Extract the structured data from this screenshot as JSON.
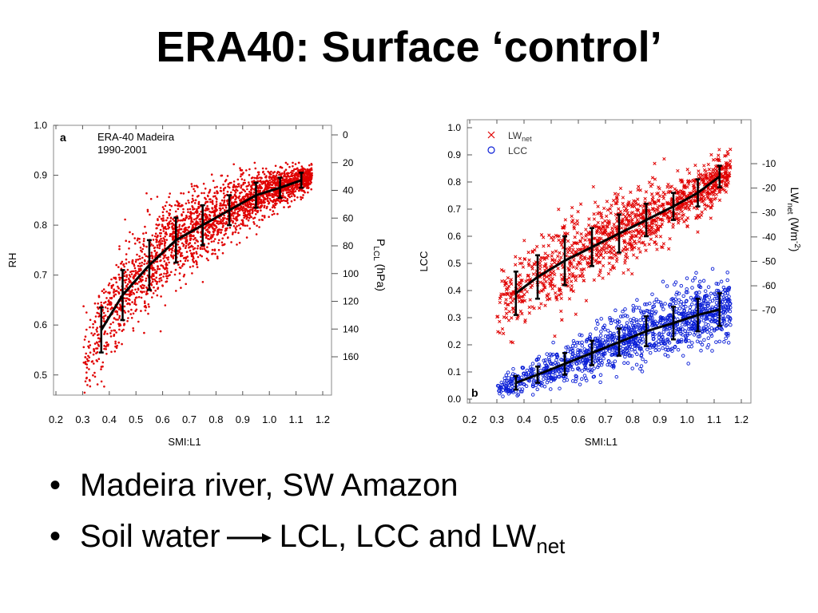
{
  "slide": {
    "title": "ERA40:  Surface ‘control’",
    "bullets": [
      {
        "text": "Madeira river, SW Amazon"
      },
      {
        "text_before_arrow": "Soil water",
        "text_after_arrow": "LCL, LCC and LW",
        "subscript": "net"
      }
    ]
  },
  "chart_data": [
    {
      "type": "scatter",
      "panel_letter": "a",
      "annotation_lines": [
        "ERA-40 Madeira",
        "1990-2001"
      ],
      "xlabel": "SMI:L1",
      "ylabel": "RH",
      "y2label": {
        "base": "P",
        "sub": "LCL",
        "rest": " (hPa)"
      },
      "xlim": [
        0.2,
        1.2
      ],
      "ylim": [
        0.45,
        1.0
      ],
      "xticks": [
        "0.2",
        "0.3",
        "0.4",
        "0.5",
        "0.6",
        "0.7",
        "0.8",
        "0.9",
        "1.0",
        "1.1",
        "1.2"
      ],
      "yticks": [
        "0.5",
        "0.6",
        "0.7",
        "0.8",
        "0.9",
        "1.0"
      ],
      "y2ticks": [
        "0",
        "20",
        "40",
        "60",
        "80",
        "100",
        "120",
        "140",
        "160"
      ],
      "y2_relation": "RH = 1 - P_LCL/360",
      "series": [
        {
          "color": "#e00000",
          "marker": "dot",
          "binned_mean": {
            "x": [
              0.37,
              0.45,
              0.55,
              0.65,
              0.75,
              0.85,
              0.95,
              1.04,
              1.12
            ],
            "y": [
              0.59,
              0.66,
              0.72,
              0.77,
              0.8,
              0.83,
              0.86,
              0.875,
              0.89
            ],
            "sd": [
              0.045,
              0.05,
              0.05,
              0.045,
              0.04,
              0.03,
              0.025,
              0.02,
              0.015
            ]
          }
        }
      ]
    },
    {
      "type": "scatter",
      "panel_letter": "b",
      "xlabel": "SMI:L1",
      "ylabel": "LCC",
      "y2label": {
        "base": "LW",
        "sub": "net",
        "rest": " (Wm",
        "sup": "-2",
        "end": ")"
      },
      "xlim": [
        0.2,
        1.2
      ],
      "ylim": [
        0.0,
        1.0
      ],
      "xticks": [
        "0.2",
        "0.3",
        "0.4",
        "0.5",
        "0.6",
        "0.7",
        "0.8",
        "0.9",
        "1.0",
        "1.1",
        "1.2"
      ],
      "yticks": [
        "0.0",
        "0.1",
        "0.2",
        "0.3",
        "0.4",
        "0.5",
        "0.6",
        "0.7",
        "0.8",
        "0.9",
        "1.0"
      ],
      "y2ticks": [
        "-10",
        "-20",
        "-30",
        "-40",
        "-50",
        "-60",
        "-70"
      ],
      "y2_relation": "LCC = 0.9575 - 0.009 * |LWnet|",
      "legend_position": "top-left",
      "series": [
        {
          "name": "LW",
          "name_sub": "net",
          "color": "#e00000",
          "marker": "x",
          "binned_mean": {
            "x": [
              0.37,
              0.45,
              0.55,
              0.65,
              0.75,
              0.85,
              0.95,
              1.04,
              1.12
            ],
            "y": [
              0.39,
              0.45,
              0.51,
              0.56,
              0.61,
              0.66,
              0.71,
              0.76,
              0.82
            ],
            "sd": [
              0.08,
              0.08,
              0.09,
              0.07,
              0.07,
              0.06,
              0.05,
              0.05,
              0.04
            ]
          }
        },
        {
          "name": "LCC",
          "color": "#0a1ed6",
          "marker": "circle",
          "binned_mean": {
            "x": [
              0.37,
              0.45,
              0.55,
              0.65,
              0.75,
              0.85,
              0.95,
              1.04,
              1.12
            ],
            "y": [
              0.06,
              0.09,
              0.13,
              0.17,
              0.21,
              0.25,
              0.28,
              0.31,
              0.33
            ],
            "sd": [
              0.025,
              0.03,
              0.04,
              0.045,
              0.05,
              0.055,
              0.06,
              0.06,
              0.06
            ]
          }
        }
      ]
    }
  ]
}
